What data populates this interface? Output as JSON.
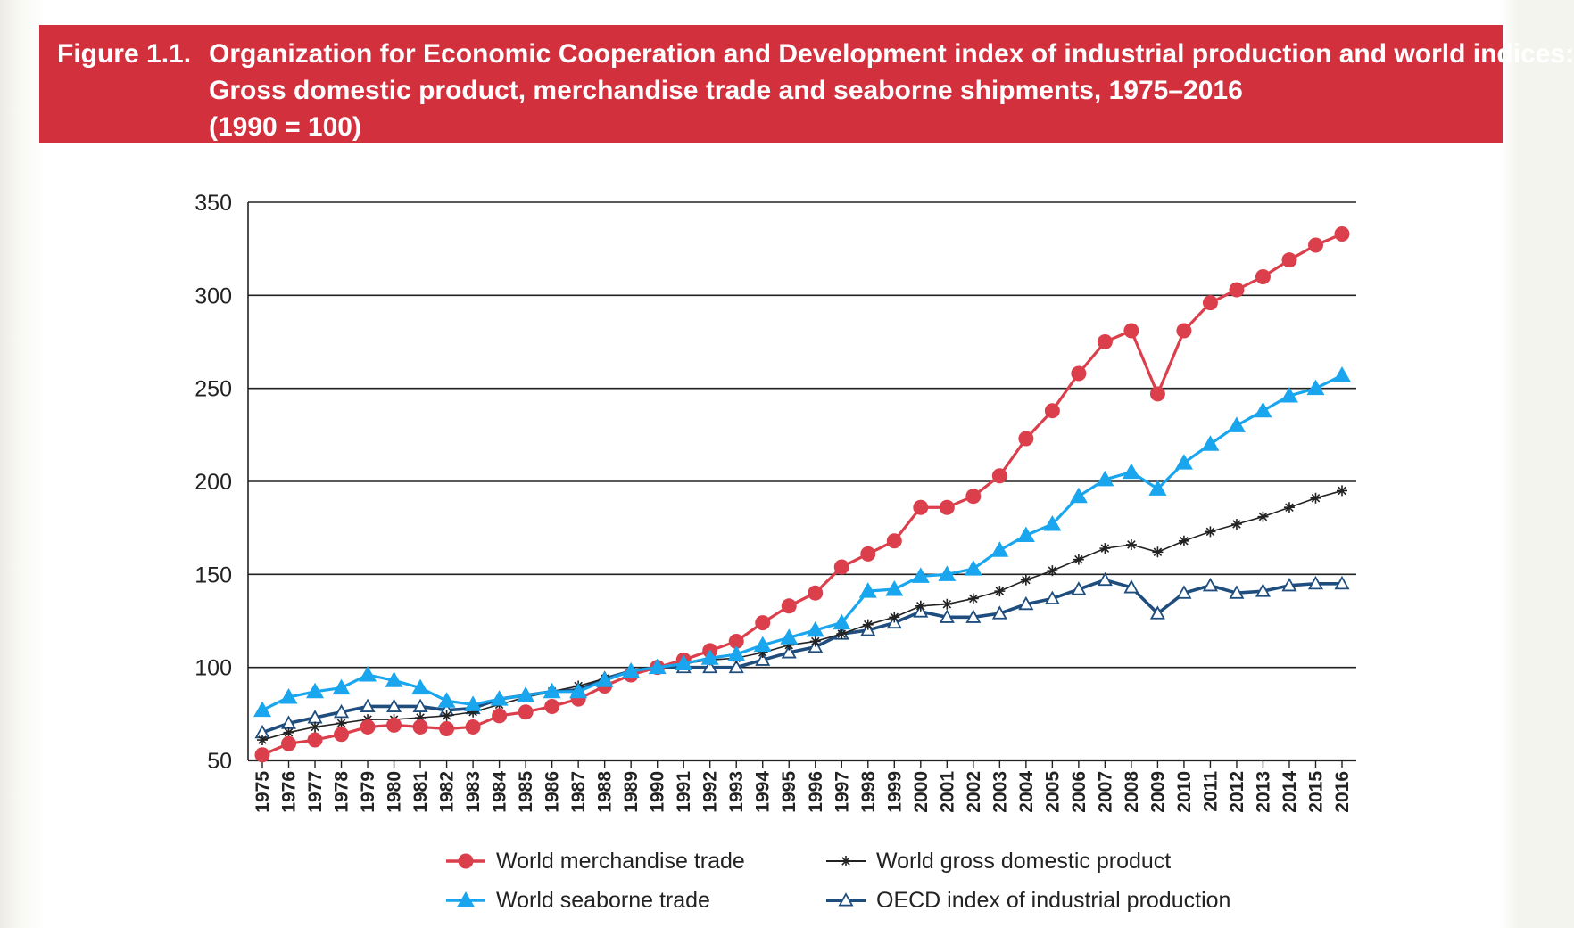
{
  "header": {
    "figure_label": "Figure 1.1.",
    "title_lines": [
      "Organization for Economic Cooperation and Development index of industrial production and world indices:",
      "Gross domestic product, merchandise trade and seaborne shipments, 1975–2016",
      "(1990 = 100)"
    ]
  },
  "colors": {
    "banner": "#d3303e",
    "merchandise": "#dc3f4c",
    "seaborne": "#1aa6ee",
    "gdp": "#222222",
    "oecd": "#1f4e7e"
  },
  "chart_data": {
    "type": "line",
    "title": "Organization for Economic Cooperation and Development index of industrial production and world indices: Gross domestic product, merchandise trade and seaborne shipments, 1975–2016 (1990 = 100)",
    "xlabel": "",
    "ylabel": "",
    "ylim": [
      50,
      350
    ],
    "yticks": [
      50,
      100,
      150,
      200,
      250,
      300,
      350
    ],
    "grid": true,
    "legend_position": "bottom",
    "x": [
      "1975",
      "1976",
      "1977",
      "1978",
      "1979",
      "1980",
      "1981",
      "1982",
      "1983",
      "1984",
      "1985",
      "1986",
      "1987",
      "1988",
      "1989",
      "1990",
      "1991",
      "1992",
      "1993",
      "1994",
      "1995",
      "1996",
      "1997",
      "1998",
      "1999",
      "2000",
      "2001",
      "2002",
      "2003",
      "2004",
      "2005",
      "2006",
      "2007",
      "2008",
      "2009",
      "2010",
      "2011",
      "2012",
      "2013",
      "2014",
      "2015",
      "2016"
    ],
    "series": [
      {
        "name": "World merchandise trade",
        "key": "merchandise",
        "marker": "circle",
        "values": [
          53,
          59,
          61,
          64,
          68,
          69,
          68,
          67,
          68,
          74,
          76,
          79,
          83,
          90,
          96,
          100,
          104,
          109,
          114,
          124,
          133,
          140,
          154,
          161,
          168,
          186,
          186,
          192,
          203,
          223,
          238,
          258,
          275,
          281,
          247,
          281,
          296,
          303,
          310,
          319,
          327,
          333
        ]
      },
      {
        "name": "World seaborne trade",
        "key": "seaborne",
        "marker": "triangle",
        "values": [
          77,
          84,
          87,
          89,
          96,
          93,
          89,
          82,
          80,
          83,
          85,
          87,
          87,
          93,
          98,
          100,
          102,
          105,
          107,
          112,
          116,
          120,
          124,
          141,
          142,
          149,
          150,
          153,
          163,
          171,
          177,
          192,
          201,
          205,
          196,
          210,
          220,
          230,
          238,
          246,
          250,
          257
        ]
      },
      {
        "name": "World gross domestic product",
        "key": "gdp",
        "marker": "star",
        "values": [
          61,
          65,
          68,
          70,
          72,
          72,
          73,
          74,
          76,
          80,
          84,
          87,
          90,
          94,
          97,
          100,
          102,
          104,
          105,
          108,
          112,
          114,
          118,
          123,
          127,
          133,
          134,
          137,
          141,
          147,
          152,
          158,
          164,
          166,
          162,
          168,
          173,
          177,
          181,
          186,
          191,
          195
        ]
      },
      {
        "name": "OECD index of industrial production",
        "key": "oecd",
        "marker": "triangle-open",
        "values": [
          65,
          70,
          73,
          76,
          79,
          79,
          79,
          77,
          78,
          83,
          85,
          87,
          88,
          94,
          98,
          100,
          100,
          100,
          100,
          104,
          108,
          111,
          118,
          120,
          124,
          130,
          127,
          127,
          129,
          134,
          137,
          142,
          147,
          143,
          129,
          140,
          144,
          140,
          141,
          144,
          145,
          145
        ]
      }
    ]
  }
}
